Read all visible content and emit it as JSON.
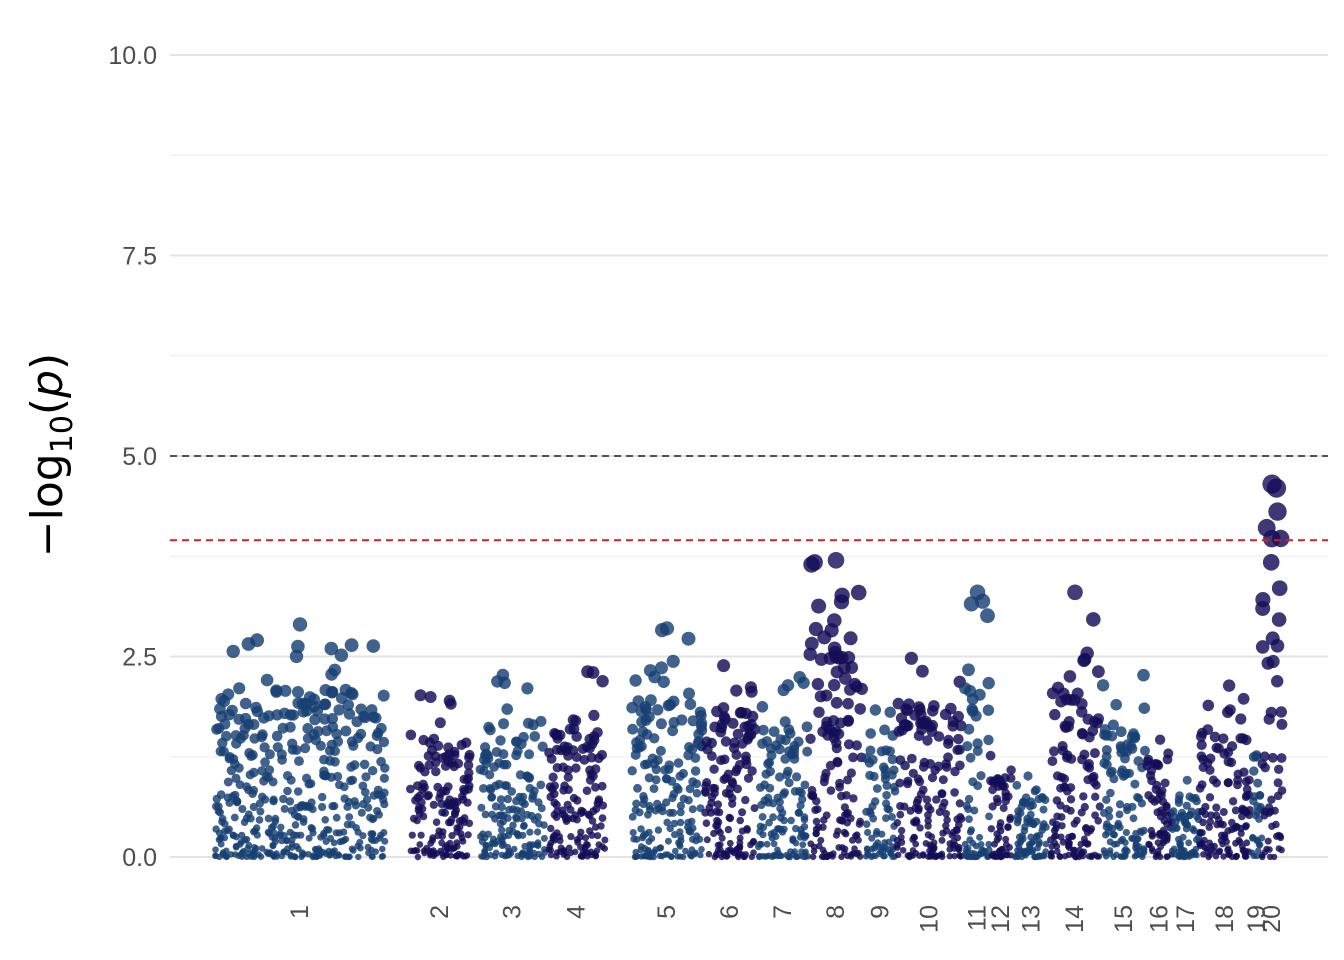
{
  "chart_data": {
    "type": "scatter",
    "subtype": "manhattan",
    "title": "",
    "xlabel": "",
    "ylabel": "−log10(p)",
    "ylim": [
      0,
      10
    ],
    "yticks": [
      0.0,
      2.5,
      5.0,
      7.5,
      10.0
    ],
    "ytick_labels": [
      "0.0",
      "2.5",
      "5.0",
      "7.5",
      "10.0"
    ],
    "grid": "horizontal",
    "colors": [
      "#173f73",
      "#140d58"
    ],
    "thresholds": [
      {
        "value": 5.0,
        "color": "#555555",
        "style": "dashed"
      },
      {
        "value": 3.95,
        "color": "#e31a1c",
        "style": "dashed"
      }
    ],
    "chromosomes": [
      {
        "label": "1",
        "start": 215,
        "end": 385,
        "max": 2.9
      },
      {
        "label": "2",
        "start": 410,
        "end": 470,
        "max": 2.15
      },
      {
        "label": "3",
        "start": 480,
        "end": 545,
        "max": 2.35
      },
      {
        "label": "4",
        "start": 548,
        "end": 605,
        "max": 2.35
      },
      {
        "label": "5",
        "start": 632,
        "end": 702,
        "max": 2.85
      },
      {
        "label": "6",
        "start": 705,
        "end": 755,
        "max": 2.5
      },
      {
        "label": "7",
        "start": 758,
        "end": 808,
        "max": 2.35
      },
      {
        "label": "8",
        "start": 810,
        "end": 862,
        "max": 3.7
      },
      {
        "label": "9",
        "start": 866,
        "end": 895,
        "max": 1.9
      },
      {
        "label": "10",
        "start": 897,
        "end": 962,
        "max": 2.65
      },
      {
        "label": "11",
        "start": 965,
        "end": 990,
        "max": 3.3
      },
      {
        "label": "12",
        "start": 990,
        "end": 1012,
        "max": 1.4
      },
      {
        "label": "13",
        "start": 1015,
        "end": 1048,
        "max": 1.05
      },
      {
        "label": "14",
        "start": 1050,
        "end": 1100,
        "max": 3.3
      },
      {
        "label": "15",
        "start": 1103,
        "end": 1145,
        "max": 2.3
      },
      {
        "label": "16",
        "start": 1147,
        "end": 1172,
        "max": 1.8
      },
      {
        "label": "17",
        "start": 1172,
        "end": 1200,
        "max": 1.05
      },
      {
        "label": "18",
        "start": 1200,
        "end": 1250,
        "max": 2.15
      },
      {
        "label": "19",
        "start": 1252,
        "end": 1262,
        "max": 1.8
      },
      {
        "label": "20",
        "start": 1262,
        "end": 1282,
        "max": 4.65
      }
    ],
    "peaks": [
      {
        "chrom": "1",
        "value": 2.9
      },
      {
        "chrom": "5",
        "value": 2.85
      },
      {
        "chrom": "8",
        "value": 3.7
      },
      {
        "chrom": "11",
        "value": 3.3
      },
      {
        "chrom": "14",
        "value": 3.3
      },
      {
        "chrom": "20",
        "value": 4.65
      }
    ]
  }
}
